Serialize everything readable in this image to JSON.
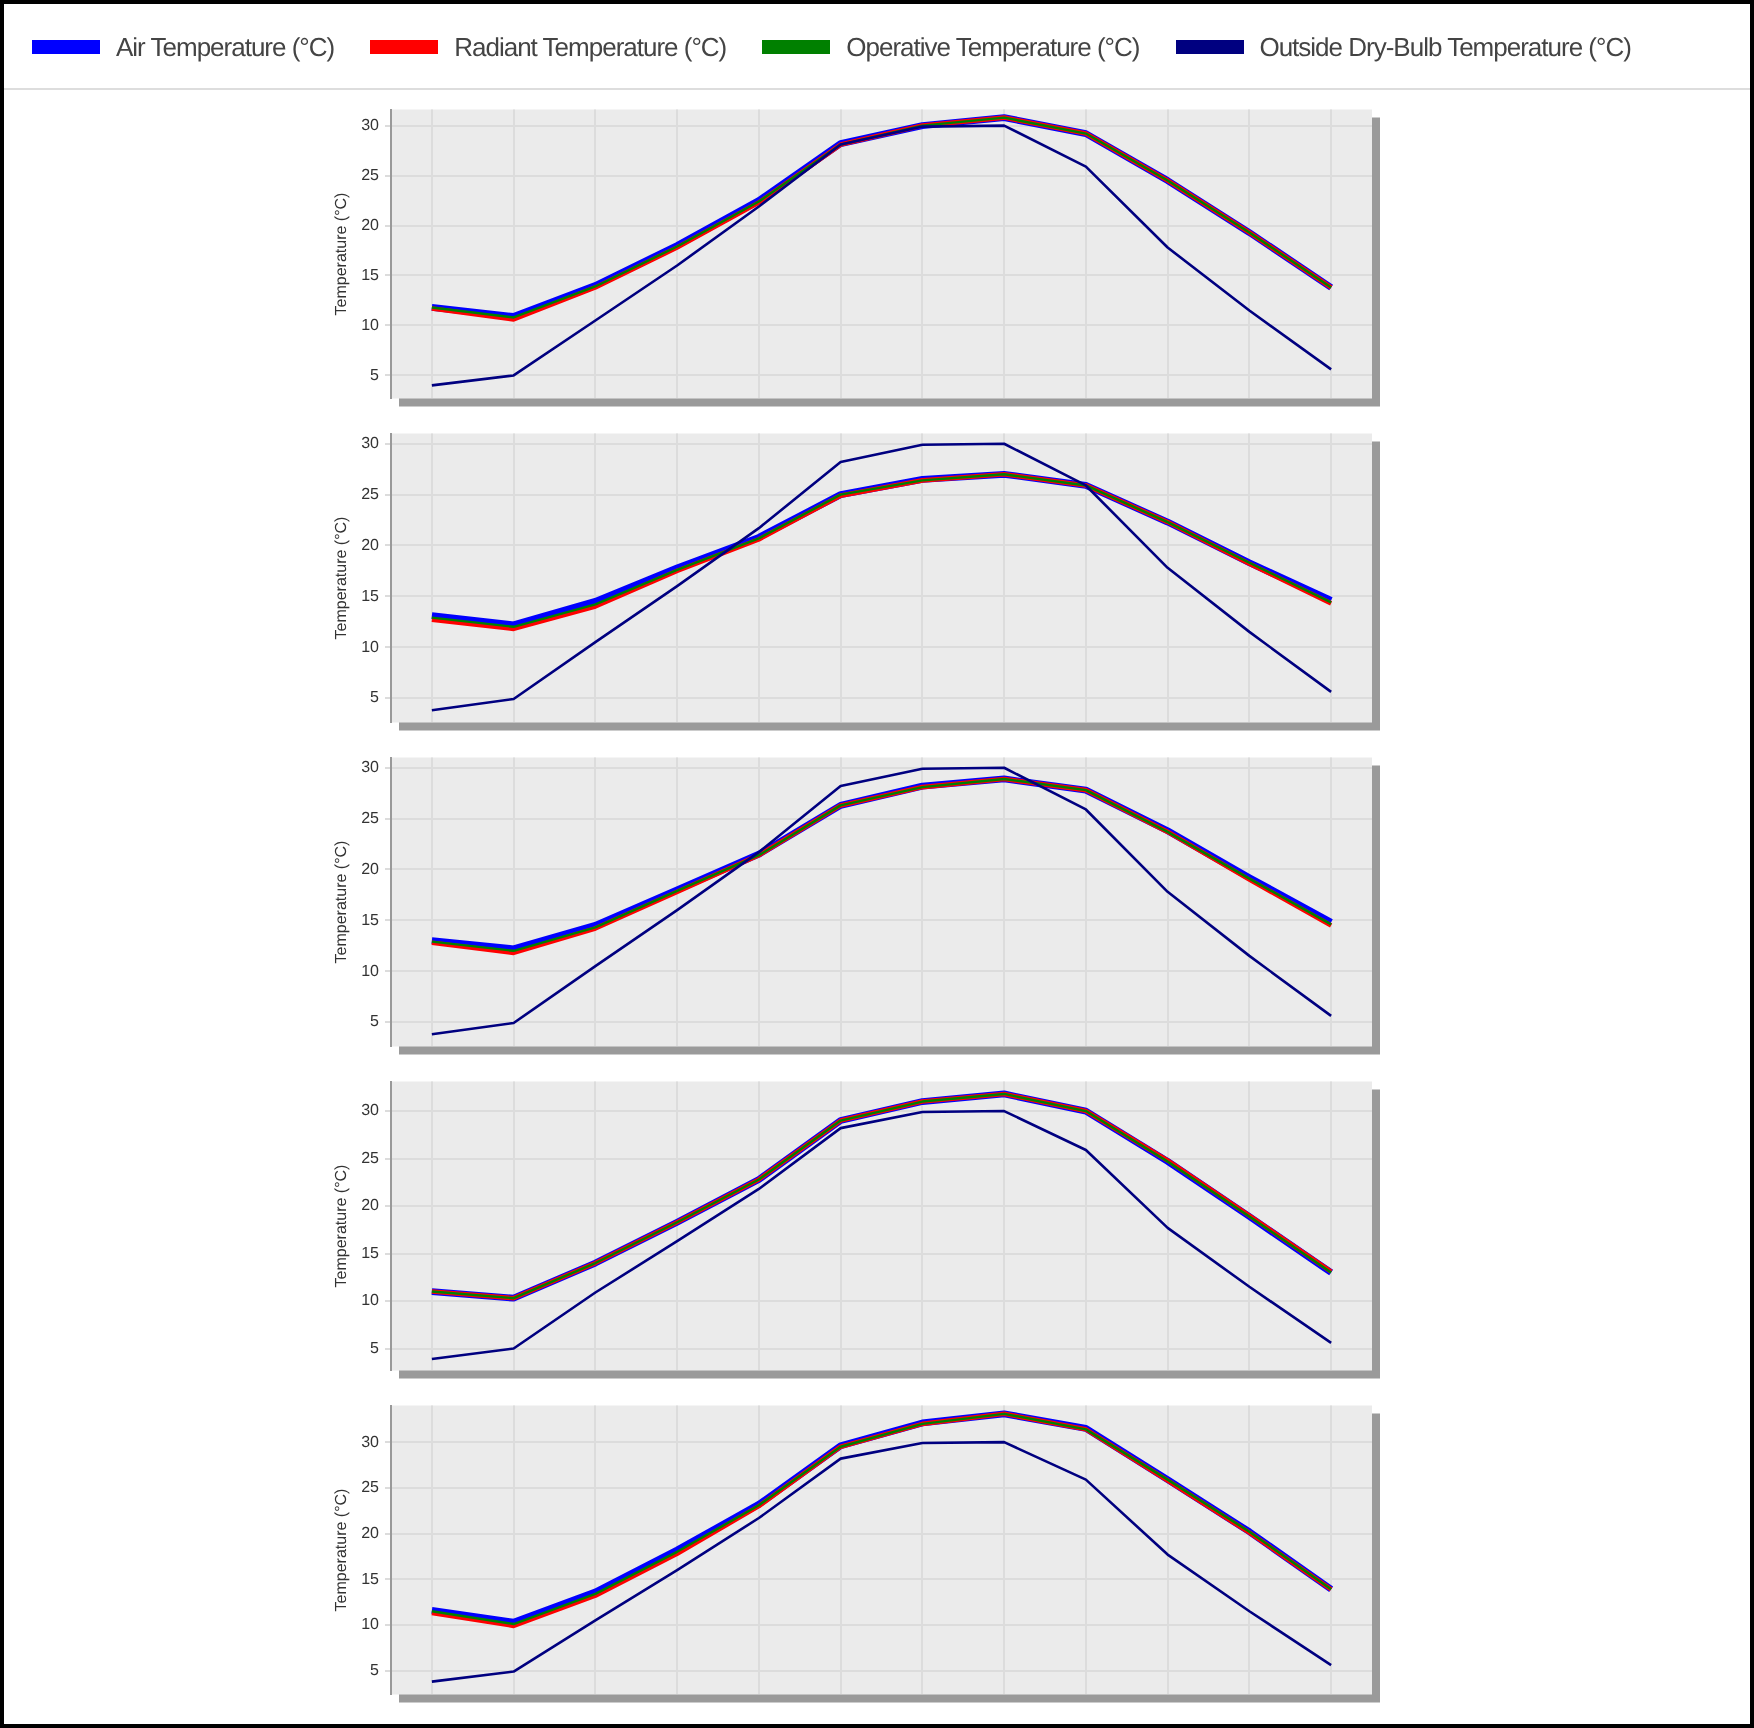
{
  "chart_data": [
    {
      "type": "line",
      "ylabel": "Temperature (°C)",
      "categories": [
        null,
        null,
        null,
        null,
        null,
        null,
        null,
        null,
        null,
        null,
        null,
        null
      ],
      "ylim": [
        2.7,
        31.6
      ],
      "yticks": [
        5,
        10,
        15,
        20,
        25,
        30
      ],
      "grid": true,
      "legend": "top",
      "marker": "none",
      "line_style": "solid",
      "tick_labels": "y",
      "series": [
        {
          "name": "Air Temperature (°C)",
          "color": "#0000ff",
          "values": [
            11.8,
            10.9,
            14,
            18,
            22.5,
            28.2,
            30,
            30.8,
            29.2,
            24.5,
            19.3,
            13.8
          ]
        },
        {
          "name": "Radiant Temperature (°C)",
          "color": "#ff0000",
          "values": [
            11.7,
            10.6,
            13.8,
            17.8,
            22.3,
            28.1,
            30,
            30.8,
            29.2,
            24.5,
            19.3,
            13.8
          ]
        },
        {
          "name": "Operative Temperature (°C)",
          "color": "#008000",
          "values": [
            11.8,
            10.8,
            13.9,
            17.9,
            22.4,
            28.1,
            30,
            30.8,
            29.2,
            24.5,
            19.3,
            13.8
          ]
        },
        {
          "name": "Outside Dry-Bulb Temperature (°C)",
          "color": "#000080",
          "values": [
            4,
            5,
            10.5,
            16,
            21.9,
            28.1,
            29.9,
            30,
            25.9,
            17.8,
            11.5,
            5.6
          ]
        }
      ]
    },
    {
      "type": "line",
      "ylabel": "Temperature (°C)",
      "categories": [
        null,
        null,
        null,
        null,
        null,
        null,
        null,
        null,
        null,
        null,
        null,
        null
      ],
      "ylim": [
        2.6,
        31
      ],
      "yticks": [
        5,
        10,
        15,
        20,
        25,
        30
      ],
      "grid": true,
      "marker": "none",
      "line_style": "solid",
      "tick_labels": "y",
      "series": [
        {
          "color": "#0000ff",
          "values": [
            13.1,
            12.2,
            14.5,
            17.8,
            20.8,
            25,
            26.5,
            27,
            25.9,
            22.3,
            18.3,
            14.6
          ]
        },
        {
          "color": "#ff0000",
          "values": [
            12.7,
            11.8,
            14,
            17.5,
            20.6,
            24.9,
            26.4,
            27,
            25.9,
            22.3,
            18.2,
            14.3
          ]
        },
        {
          "color": "#008000",
          "values": [
            12.9,
            12,
            14.2,
            17.6,
            20.7,
            25,
            26.4,
            27,
            25.9,
            22.3,
            18.3,
            14.4
          ]
        },
        {
          "color": "#000080",
          "values": [
            3.8,
            4.9,
            10.5,
            16,
            21.7,
            28.2,
            29.9,
            30,
            25.9,
            17.8,
            11.5,
            5.6
          ]
        }
      ]
    },
    {
      "type": "line",
      "ylabel": "Temperature (°C)",
      "categories": [
        null,
        null,
        null,
        null,
        null,
        null,
        null,
        null,
        null,
        null,
        null,
        null
      ],
      "ylim": [
        2.6,
        31
      ],
      "yticks": [
        5,
        10,
        15,
        20,
        25,
        30
      ],
      "grid": true,
      "marker": "none",
      "line_style": "solid",
      "tick_labels": "y",
      "series": [
        {
          "color": "#0000ff",
          "values": [
            13,
            12.2,
            14.5,
            18,
            21.5,
            26.3,
            28.2,
            28.9,
            27.8,
            23.8,
            19.2,
            14.8
          ]
        },
        {
          "color": "#ff0000",
          "values": [
            12.8,
            11.8,
            14.2,
            17.8,
            21.4,
            26.3,
            28.1,
            28.9,
            27.8,
            23.7,
            19,
            14.5
          ]
        },
        {
          "color": "#008000",
          "values": [
            12.9,
            12,
            14.3,
            17.9,
            21.4,
            26.3,
            28.1,
            28.9,
            27.8,
            23.7,
            19.1,
            14.6
          ]
        },
        {
          "color": "#000080",
          "values": [
            3.8,
            4.9,
            10.5,
            16,
            21.7,
            28.2,
            29.9,
            30,
            25.9,
            17.8,
            11.5,
            5.6
          ]
        }
      ]
    },
    {
      "type": "line",
      "ylabel": "Temperature (°C)",
      "categories": [
        null,
        null,
        null,
        null,
        null,
        null,
        null,
        null,
        null,
        null,
        null,
        null
      ],
      "ylim": [
        2.7,
        33.1
      ],
      "yticks": [
        5,
        10,
        15,
        20,
        25,
        30
      ],
      "grid": true,
      "marker": "none",
      "line_style": "solid",
      "tick_labels": "y",
      "series": [
        {
          "color": "#0000ff",
          "values": [
            11,
            10.3,
            14,
            18.3,
            22.8,
            29,
            31,
            31.8,
            30,
            24.7,
            18.9,
            13
          ]
        },
        {
          "color": "#ff0000",
          "values": [
            11,
            10.3,
            14,
            18.3,
            22.8,
            29,
            31,
            31.8,
            30,
            24.8,
            19,
            13.1
          ]
        },
        {
          "color": "#008000",
          "values": [
            11,
            10.3,
            14,
            18.3,
            22.8,
            29,
            31,
            31.8,
            30,
            24.7,
            18.9,
            13
          ]
        },
        {
          "color": "#000080",
          "values": [
            3.9,
            5,
            10.9,
            16.3,
            21.8,
            28.2,
            29.9,
            30,
            25.9,
            17.7,
            11.5,
            5.6
          ]
        }
      ]
    },
    {
      "type": "line",
      "ylabel": "Temperature (°C)",
      "categories": [
        null,
        null,
        null,
        null,
        null,
        null,
        null,
        null,
        null,
        null,
        null,
        null
      ],
      "ylim": [
        2.4,
        34
      ],
      "yticks": [
        5,
        10,
        15,
        20,
        25,
        30
      ],
      "grid": true,
      "marker": "none",
      "line_style": "solid",
      "tick_labels": "y",
      "series": [
        {
          "color": "#0000ff",
          "values": [
            11.6,
            10.3,
            13.6,
            18.2,
            23.2,
            29.6,
            32.1,
            33.1,
            31.5,
            25.9,
            20.2,
            13.9
          ]
        },
        {
          "color": "#ff0000",
          "values": [
            11.3,
            9.9,
            13.2,
            17.8,
            23,
            29.5,
            32,
            33.1,
            31.4,
            25.8,
            20.1,
            13.9
          ]
        },
        {
          "color": "#008000",
          "values": [
            11.5,
            10.1,
            13.4,
            18,
            23.1,
            29.5,
            32,
            33.1,
            31.4,
            25.9,
            20.2,
            13.9
          ]
        },
        {
          "color": "#000080",
          "values": [
            3.8,
            4.9,
            10.5,
            16,
            21.7,
            28.2,
            29.9,
            30,
            25.9,
            17.7,
            11.5,
            5.6
          ]
        }
      ]
    }
  ]
}
